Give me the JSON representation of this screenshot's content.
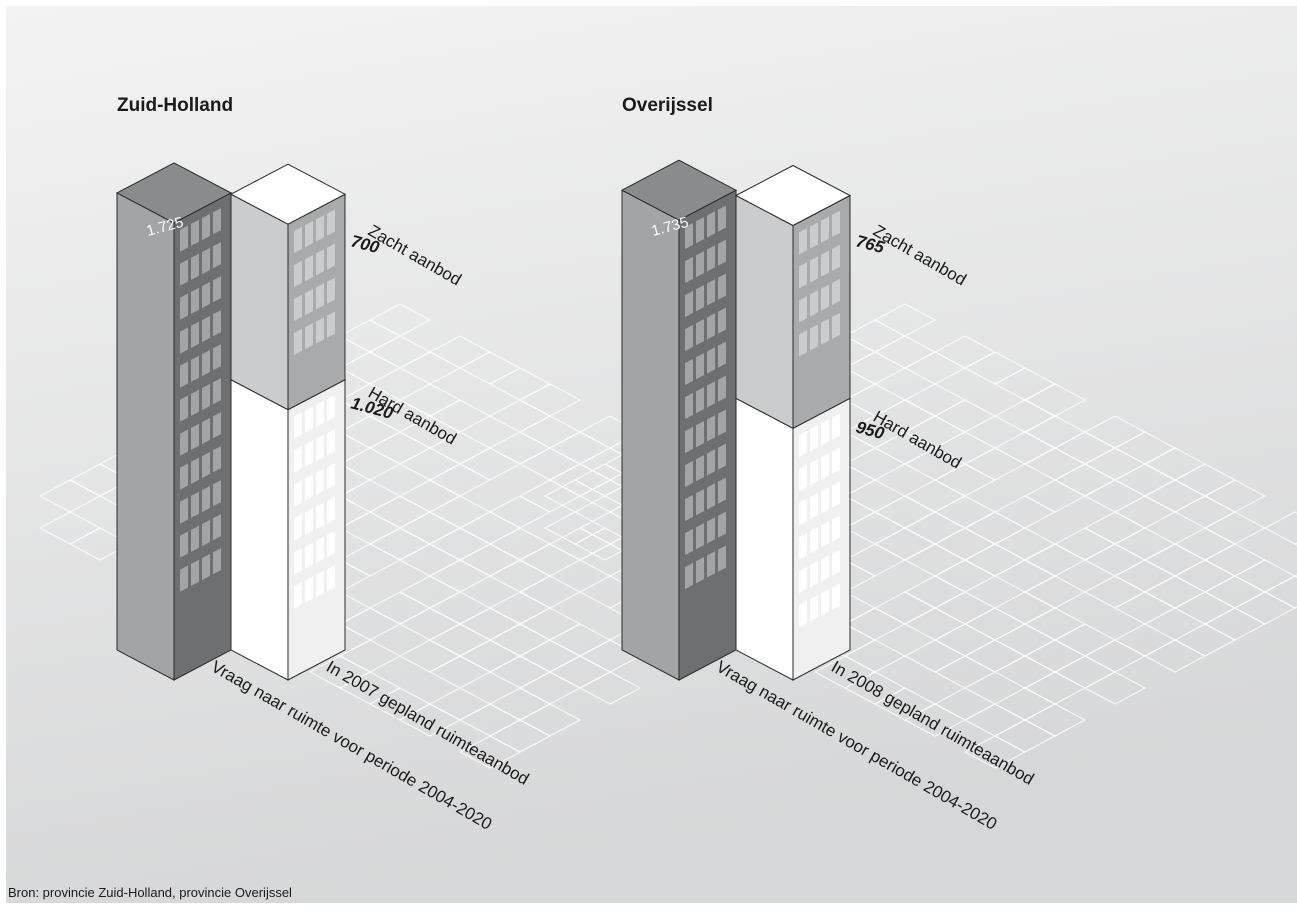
{
  "source": "Bron: provincie Zuid-Holland, provincie Overijssel",
  "chart_data": [
    {
      "type": "bar",
      "title": "Zuid-Holland",
      "stacked_segments": [
        "Hard aanbod",
        "Zacht aanbod"
      ],
      "categories": [
        "Vraag naar ruimte voor periode 2004-2020",
        "In 2007 gepland ruimteaanbod"
      ],
      "series": [
        {
          "name": "Vraag",
          "values": [
            1725,
            null
          ],
          "label": "1.725"
        },
        {
          "name": "Hard aanbod",
          "values": [
            null,
            1020
          ],
          "label": "1.020"
        },
        {
          "name": "Zacht aanbod",
          "values": [
            null,
            700
          ],
          "label": "700"
        }
      ],
      "labels": {
        "demand_value": "1.725",
        "soft_name": "Zacht aanbod",
        "soft_value": "700",
        "hard_name": "Hard aanbod",
        "hard_value": "1.020",
        "demand_caption": "Vraag naar ruimte voor periode 2004-2020",
        "supply_caption": "In 2007 gepland ruimteaanbod"
      },
      "colors": {
        "demand": "#a3a4a6",
        "hard": "#ffffff",
        "soft": "#cbcccd"
      }
    },
    {
      "type": "bar",
      "title": "Overijssel",
      "stacked_segments": [
        "Hard aanbod",
        "Zacht aanbod"
      ],
      "categories": [
        "Vraag naar ruimte voor periode 2004-2020",
        "In 2008 gepland ruimteaanbod"
      ],
      "series": [
        {
          "name": "Vraag",
          "values": [
            1735,
            null
          ],
          "label": "1.735"
        },
        {
          "name": "Hard aanbod",
          "values": [
            null,
            950
          ],
          "label": "950"
        },
        {
          "name": "Zacht aanbod",
          "values": [
            null,
            765
          ],
          "label": "765"
        }
      ],
      "labels": {
        "demand_value": "1.735",
        "soft_name": "Zacht aanbod",
        "soft_value": "765",
        "hard_name": "Hard aanbod",
        "hard_value": "950",
        "demand_caption": "Vraag naar ruimte voor periode 2004-2020",
        "supply_caption": "In 2008 gepland ruimteaanbod"
      },
      "colors": {
        "demand": "#a3a4a6",
        "hard": "#ffffff",
        "soft": "#cbcccd"
      }
    }
  ]
}
